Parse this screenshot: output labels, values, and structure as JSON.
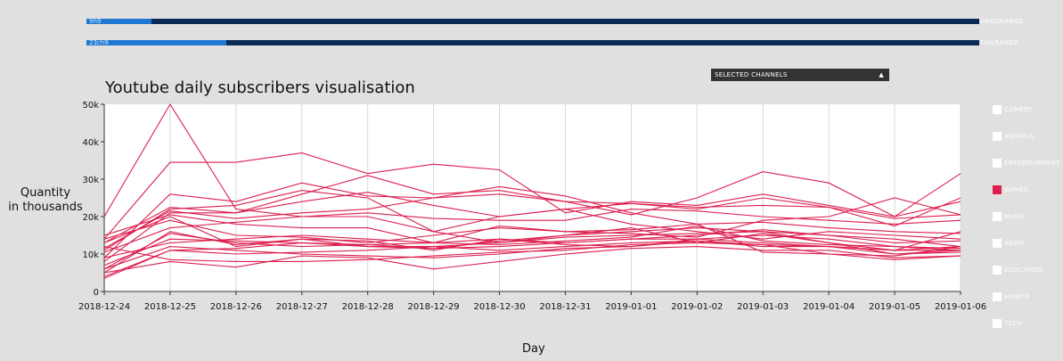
{
  "head_range": {
    "value": "9h9",
    "label": "HEADRANGE",
    "fraction": 0.073
  },
  "tail_range": {
    "value": "23ch9",
    "label": "TAILRANGE",
    "fraction": 0.157
  },
  "selector": {
    "label": "SELECTED CHANNELS",
    "caret": "▲"
  },
  "legend": {
    "items": [
      {
        "label": "COMEDY",
        "selected": false
      },
      {
        "label": "ANIMALS",
        "selected": false
      },
      {
        "label": "ENTERTAINMENT",
        "selected": false
      },
      {
        "label": "GAMES",
        "selected": true
      },
      {
        "label": "MUSIC",
        "selected": false
      },
      {
        "label": "NEWS",
        "selected": false
      },
      {
        "label": "EDUCATION",
        "selected": false
      },
      {
        "label": "HOWTO",
        "selected": false
      },
      {
        "label": "TECH",
        "selected": false
      }
    ],
    "selected_color": "#dc1f4f",
    "unselected_color": "#ffffff"
  },
  "chart_data": {
    "type": "line",
    "title": "Youtube daily subscribers visualisation",
    "xlabel": "Day",
    "ylabel": "Quantity in thousands",
    "ylabel_lines": [
      "Quantity",
      "in thousands"
    ],
    "line_color": "#dc1f4f",
    "grid": true,
    "ylim": [
      0,
      50000
    ],
    "yticks": [
      0,
      10000,
      20000,
      30000,
      40000,
      50000
    ],
    "ytick_labels": [
      "0",
      "10k",
      "20k",
      "30k",
      "40k",
      "50k"
    ],
    "x": [
      "2018-12-24",
      "2018-12-25",
      "2018-12-26",
      "2018-12-27",
      "2018-12-28",
      "2018-12-29",
      "2018-12-30",
      "2018-12-31",
      "2019-01-01",
      "2019-01-02",
      "2019-01-03",
      "2019-01-04",
      "2019-01-05",
      "2019-01-06"
    ],
    "series": [
      {
        "values": [
          20000,
          50000,
          22000,
          20000,
          20000,
          16000,
          20000,
          22000,
          18000,
          16000,
          14000,
          16000,
          15000,
          14000
        ]
      },
      {
        "values": [
          14000,
          34500,
          34500,
          37000,
          31500,
          34000,
          32500,
          21000,
          24000,
          23000,
          26000,
          23000,
          20000,
          24000
        ]
      },
      {
        "values": [
          11000,
          22000,
          23000,
          27000,
          25000,
          16000,
          13000,
          15000,
          17000,
          13000,
          15500,
          13000,
          11000,
          16000
        ]
      },
      {
        "values": [
          9000,
          26000,
          24000,
          29000,
          25500,
          25000,
          28000,
          25500,
          21000,
          18000,
          10500,
          10000,
          8500,
          9500
        ]
      },
      {
        "values": [
          8000,
          21000,
          21000,
          26000,
          31000,
          26000,
          27000,
          24000,
          20500,
          25000,
          32000,
          29000,
          20000,
          31500
        ]
      },
      {
        "values": [
          13000,
          20000,
          12000,
          14000,
          12000,
          11500,
          13500,
          15000,
          16000,
          17000,
          16000,
          13000,
          10000,
          11000
        ]
      },
      {
        "values": [
          5000,
          16000,
          12500,
          14000,
          13500,
          11000,
          14000,
          13000,
          14000,
          15000,
          16500,
          15000,
          13000,
          13500
        ]
      },
      {
        "values": [
          7000,
          14000,
          13500,
          13000,
          12000,
          12000,
          11000,
          12000,
          13000,
          13500,
          12000,
          12000,
          11000,
          12000
        ]
      },
      {
        "values": [
          4000,
          11000,
          11500,
          13000,
          12500,
          11500,
          12000,
          13000,
          14000,
          14000,
          15000,
          14000,
          12000,
          11500
        ]
      },
      {
        "values": [
          6000,
          12000,
          11000,
          10000,
          9500,
          9000,
          10000,
          11500,
          12000,
          14000,
          13000,
          12000,
          11000,
          11000
        ]
      },
      {
        "values": [
          5000,
          8000,
          6500,
          9500,
          9000,
          6000,
          8000,
          10000,
          11500,
          12000,
          11000,
          11000,
          9000,
          9500
        ]
      },
      {
        "values": [
          12000,
          8500,
          8000,
          8000,
          8500,
          9500,
          10500,
          11000,
          12500,
          13000,
          12500,
          12000,
          10000,
          10500
        ]
      },
      {
        "values": [
          3500,
          11000,
          10000,
          10500,
          11000,
          12000,
          13000,
          14500,
          15000,
          15500,
          16000,
          15000,
          14000,
          12000
        ]
      },
      {
        "values": [
          14000,
          19000,
          15000,
          14500,
          13000,
          15000,
          17000,
          16000,
          16500,
          18000,
          18500,
          17000,
          16000,
          15500
        ]
      },
      {
        "values": [
          10500,
          17000,
          18500,
          20000,
          21000,
          19500,
          19000,
          19000,
          22000,
          21500,
          20000,
          19000,
          18000,
          19000
        ]
      },
      {
        "values": [
          11500,
          21500,
          19500,
          21000,
          22000,
          25000,
          26000,
          24000,
          23500,
          22500,
          23000,
          22500,
          19500,
          20500
        ]
      },
      {
        "values": [
          13000,
          22500,
          21000,
          24000,
          26500,
          23000,
          20000,
          22000,
          23500,
          22000,
          25000,
          22500,
          17500,
          25000
        ]
      },
      {
        "values": [
          15000,
          20500,
          18000,
          17000,
          17000,
          13000,
          17500,
          16000,
          15500,
          14500,
          19000,
          20000,
          25000,
          20500
        ]
      },
      {
        "values": [
          6000,
          15500,
          13000,
          12000,
          12500,
          13000,
          14000,
          12500,
          12000,
          13500,
          12500,
          10000,
          9500,
          12000
        ]
      },
      {
        "values": [
          9000,
          13000,
          14000,
          15000,
          14000,
          13000,
          12500,
          13500,
          14500,
          17500,
          13500,
          12500,
          12000,
          11000
        ]
      }
    ]
  }
}
